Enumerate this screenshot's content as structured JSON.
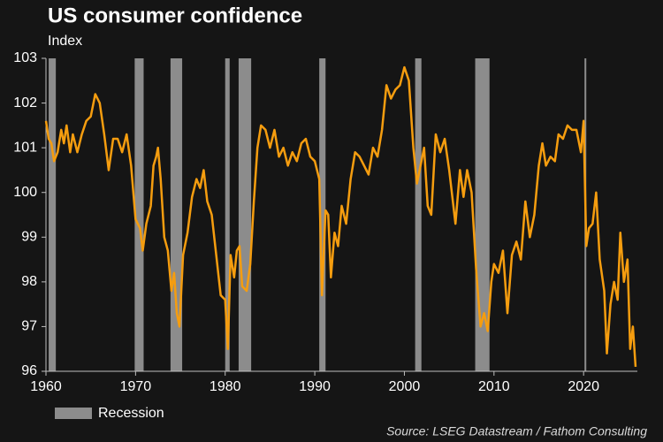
{
  "chart_data": {
    "type": "line",
    "title": "US consumer confidence",
    "subtitle": "Index",
    "source": "Source: LSEG Datastream / Fathom Consulting",
    "color": "#f59d0f",
    "xlim": [
      1960,
      2026
    ],
    "xticks": [
      1960,
      1970,
      1980,
      1990,
      2000,
      2010,
      2020
    ],
    "ylim": [
      96,
      103
    ],
    "yticks": [
      96,
      97,
      98,
      99,
      100,
      101,
      102,
      103
    ],
    "recessions": {
      "name": "Recession",
      "color": "#8c8c8c",
      "ranges": [
        [
          1960.3,
          1961.1
        ],
        [
          1969.9,
          1970.9
        ],
        [
          1973.9,
          1975.2
        ],
        [
          1980.0,
          1980.5
        ],
        [
          1981.5,
          1982.9
        ],
        [
          1990.5,
          1991.2
        ],
        [
          2001.2,
          2001.9
        ],
        [
          2007.9,
          2009.5
        ],
        [
          2020.1,
          2020.3
        ]
      ]
    },
    "x": [
      1960.0,
      1960.3,
      1960.6,
      1960.9,
      1961.3,
      1961.7,
      1962.0,
      1962.3,
      1962.7,
      1963.0,
      1963.5,
      1964.0,
      1964.5,
      1965.0,
      1965.5,
      1966.0,
      1966.5,
      1967.0,
      1967.5,
      1968.0,
      1968.5,
      1969.0,
      1969.5,
      1970.0,
      1970.5,
      1970.8,
      1971.2,
      1971.7,
      1972.0,
      1972.3,
      1972.5,
      1972.8,
      1973.2,
      1973.6,
      1974.0,
      1974.3,
      1974.6,
      1974.9,
      1975.3,
      1975.8,
      1976.3,
      1976.8,
      1977.2,
      1977.6,
      1978.0,
      1978.5,
      1979.0,
      1979.5,
      1980.0,
      1980.3,
      1980.6,
      1981.0,
      1981.3,
      1981.6,
      1981.9,
      1982.4,
      1982.8,
      1983.2,
      1983.6,
      1984.0,
      1984.5,
      1985.0,
      1985.5,
      1986.0,
      1986.5,
      1987.0,
      1987.5,
      1988.0,
      1988.5,
      1989.0,
      1989.5,
      1990.0,
      1990.5,
      1990.8,
      1991.2,
      1991.5,
      1991.8,
      1992.2,
      1992.6,
      1993.0,
      1993.5,
      1994.0,
      1994.5,
      1995.0,
      1995.5,
      1996.0,
      1996.5,
      1997.0,
      1997.5,
      1998.0,
      1998.5,
      1999.0,
      1999.5,
      2000.0,
      2000.5,
      2001.0,
      2001.4,
      2001.8,
      2002.2,
      2002.6,
      2003.0,
      2003.5,
      2004.0,
      2004.5,
      2005.0,
      2005.7,
      2006.2,
      2006.6,
      2007.0,
      2007.5,
      2008.0,
      2008.5,
      2008.9,
      2009.3,
      2009.7,
      2010.0,
      2010.5,
      2011.0,
      2011.5,
      2012.0,
      2012.5,
      2013.0,
      2013.5,
      2014.0,
      2014.5,
      2015.0,
      2015.4,
      2015.8,
      2016.3,
      2016.8,
      2017.2,
      2017.7,
      2018.2,
      2018.7,
      2019.2,
      2019.7,
      2020.0,
      2020.3,
      2020.6,
      2021.0,
      2021.4,
      2021.8,
      2022.3,
      2022.6,
      2023.0,
      2023.4,
      2023.8,
      2024.1,
      2024.5,
      2024.9,
      2025.2,
      2025.5,
      2025.8
    ],
    "values": [
      101.6,
      101.2,
      101.1,
      100.7,
      100.9,
      101.4,
      101.1,
      101.5,
      100.9,
      101.3,
      100.9,
      101.3,
      101.6,
      101.7,
      102.2,
      102.0,
      101.3,
      100.5,
      101.2,
      101.2,
      100.9,
      101.3,
      100.6,
      99.4,
      99.2,
      98.7,
      99.3,
      99.7,
      100.6,
      100.8,
      101.0,
      100.3,
      99.0,
      98.7,
      97.8,
      98.2,
      97.3,
      97.0,
      98.6,
      99.1,
      99.9,
      100.3,
      100.1,
      100.5,
      99.8,
      99.5,
      98.6,
      97.7,
      97.6,
      96.5,
      98.6,
      98.1,
      98.7,
      98.8,
      97.9,
      97.8,
      98.4,
      99.8,
      101.0,
      101.5,
      101.4,
      101.0,
      101.4,
      100.8,
      101.0,
      100.6,
      100.9,
      100.7,
      101.1,
      101.2,
      100.8,
      100.7,
      100.3,
      97.7,
      99.6,
      99.5,
      98.1,
      99.1,
      98.8,
      99.7,
      99.3,
      100.3,
      100.9,
      100.8,
      100.6,
      100.4,
      101.0,
      100.8,
      101.4,
      102.4,
      102.1,
      102.3,
      102.4,
      102.8,
      102.5,
      101.0,
      100.2,
      100.6,
      101.0,
      99.7,
      99.5,
      101.3,
      100.9,
      101.2,
      100.5,
      99.3,
      100.5,
      99.9,
      100.5,
      100.0,
      98.3,
      97.0,
      97.3,
      96.9,
      98.0,
      98.4,
      98.2,
      98.7,
      97.3,
      98.6,
      98.9,
      98.5,
      99.8,
      99.0,
      99.5,
      100.6,
      101.1,
      100.6,
      100.8,
      100.7,
      101.3,
      101.2,
      101.5,
      101.4,
      101.4,
      100.9,
      101.6,
      98.8,
      99.2,
      99.3,
      100.0,
      98.5,
      97.8,
      96.4,
      97.5,
      98.0,
      97.6,
      99.1,
      98.0,
      98.5,
      96.5,
      97.0,
      96.1
    ]
  }
}
